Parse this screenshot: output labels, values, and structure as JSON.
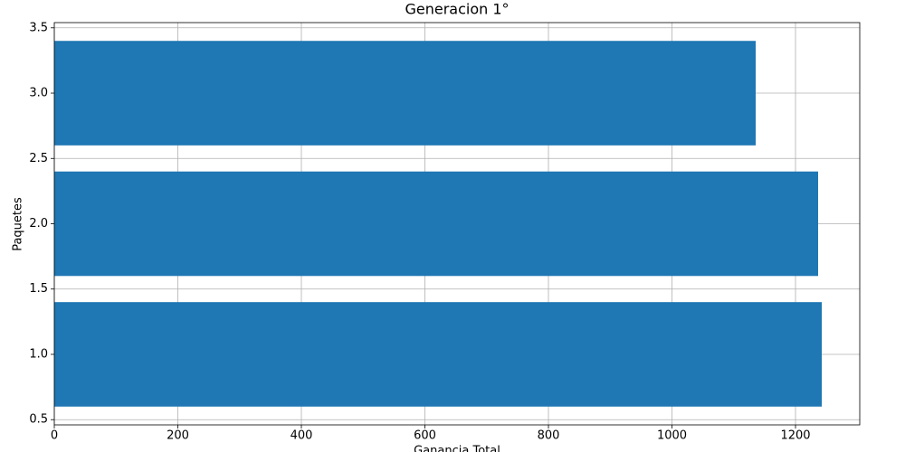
{
  "chart_data": {
    "type": "barh",
    "title": "Generacion 1°",
    "xlabel": "Ganancia Total",
    "ylabel": "Paquetes",
    "y": [
      1,
      2,
      3
    ],
    "values": [
      1242.5,
      1236.6,
      1135.5
    ],
    "bar_width": 0.8,
    "color": "#1f77b4",
    "xlim": [
      0,
      1304
    ],
    "xticks": [
      0,
      200,
      400,
      600,
      800,
      1000,
      1200
    ],
    "ylim": [
      0.46,
      3.54
    ],
    "yticks": [
      {
        "value": 0.5,
        "label": "0.5"
      },
      {
        "value": 1,
        "label": "1.0"
      },
      {
        "value": 1.5,
        "label": "1.5"
      },
      {
        "value": 2,
        "label": "2.0"
      },
      {
        "value": 2.5,
        "label": "2.5"
      },
      {
        "value": 3,
        "label": "3.0"
      },
      {
        "value": 3.5,
        "label": "3.5"
      }
    ],
    "grid": true
  }
}
